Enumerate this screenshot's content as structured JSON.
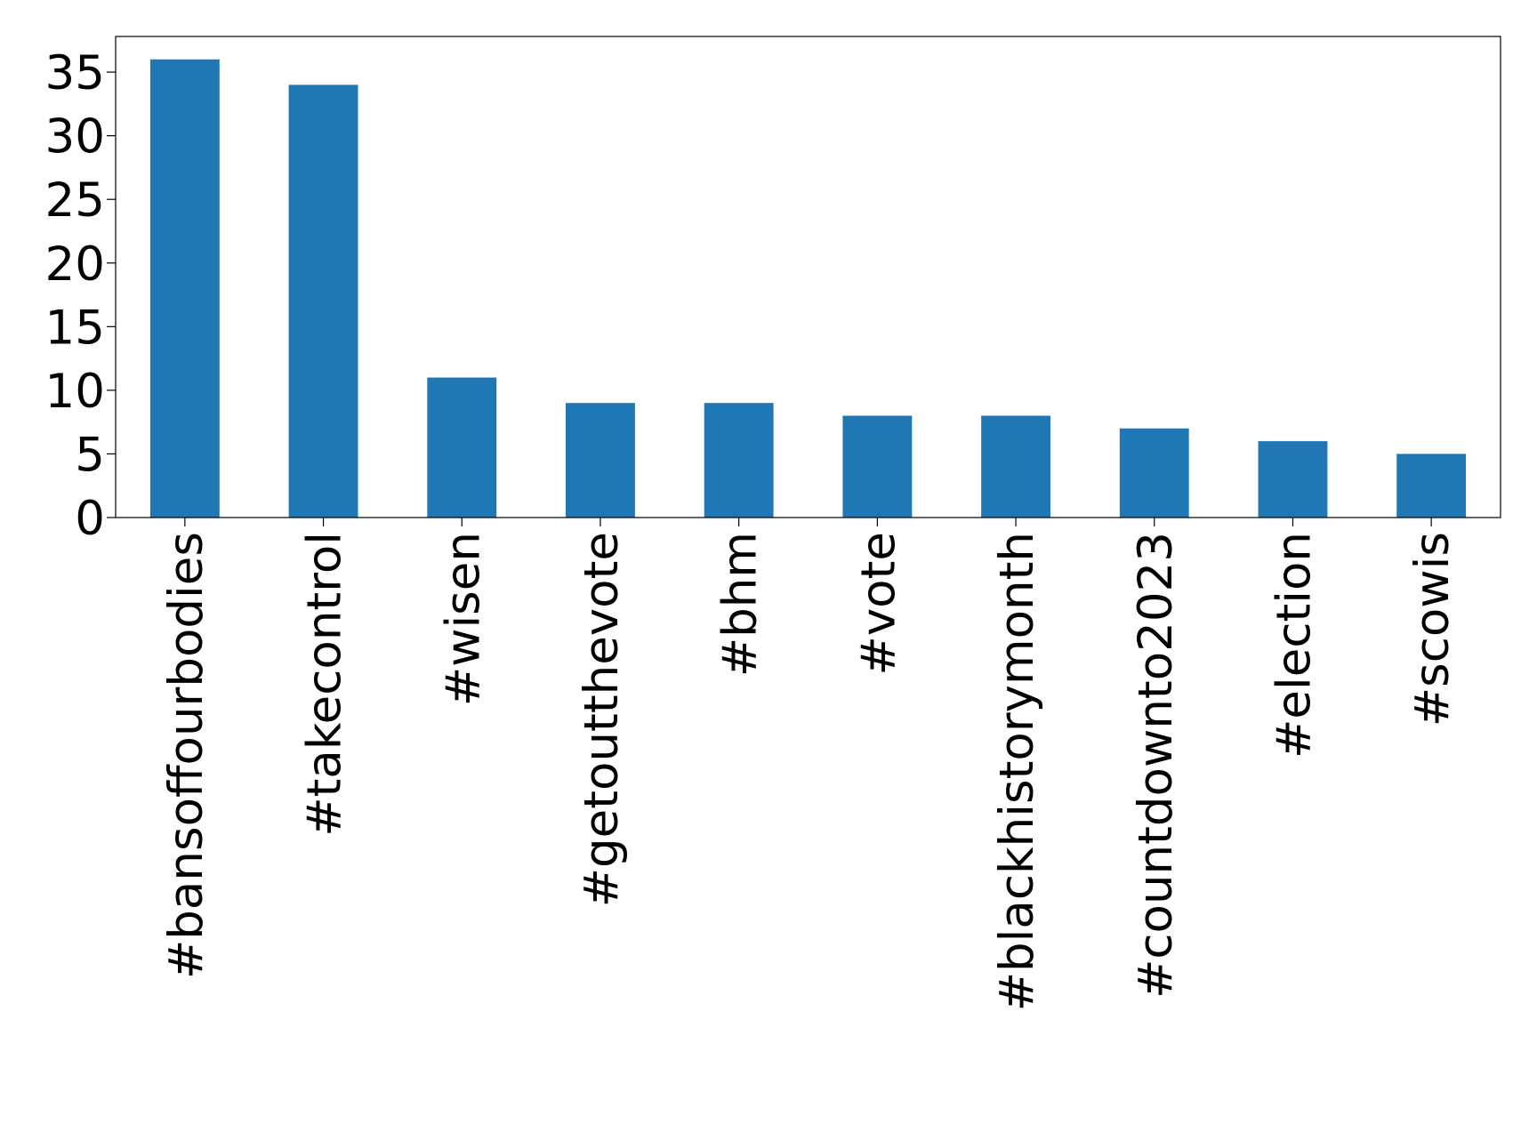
{
  "chart_data": {
    "type": "bar",
    "categories": [
      "#bansoffourbodies",
      "#takecontrol",
      "#wisen",
      "#getoutthevote",
      "#bhm",
      "#vote",
      "#blackhistorymonth",
      "#countdownto2023",
      "#election",
      "#scowis"
    ],
    "values": [
      36,
      34,
      11,
      9,
      9,
      8,
      8,
      7,
      6,
      5
    ],
    "color": "#1f77b4",
    "ylim": [
      0,
      37.8
    ],
    "yticks": [
      0,
      5,
      10,
      15,
      20,
      25,
      30,
      35
    ],
    "grid": false
  }
}
